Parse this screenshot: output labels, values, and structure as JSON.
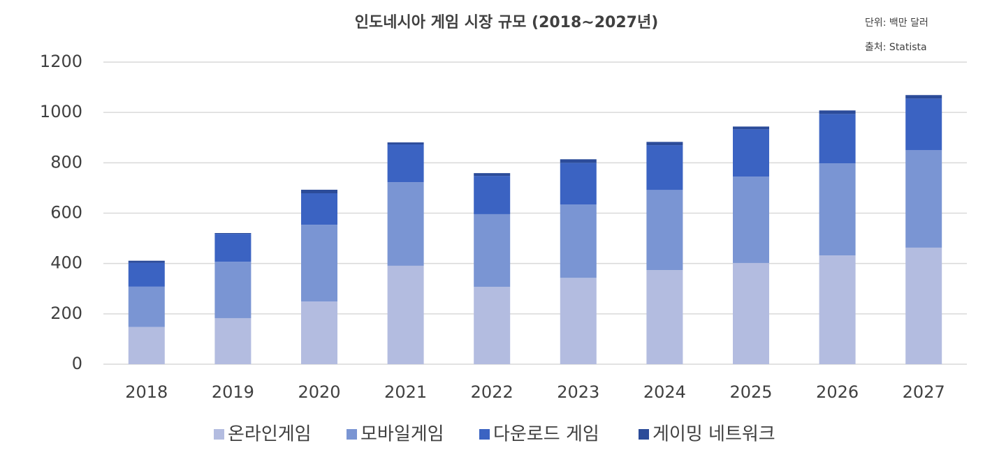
{
  "chart_data": {
    "type": "stacked_bar",
    "title": "인도네시아 게임 시장 규모 (2018~2027년)",
    "annotations": [
      "단위: 백만 달러",
      "출처: Statista"
    ],
    "categories": [
      "2018",
      "2019",
      "2020",
      "2021",
      "2022",
      "2023",
      "2024",
      "2025",
      "2026",
      "2027"
    ],
    "series": [
      {
        "name": "온라인게임",
        "color": "#b3bce0",
        "values": [
          148,
          183,
          249,
          391,
          307,
          343,
          374,
          402,
          432,
          463
        ]
      },
      {
        "name": "모바일게임",
        "color": "#7a95d3",
        "values": [
          160,
          224,
          305,
          332,
          289,
          291,
          318,
          343,
          366,
          387
        ]
      },
      {
        "name": "다운로드 게임",
        "color": "#3b63c2",
        "values": [
          95,
          111,
          125,
          150,
          152,
          166,
          178,
          188,
          196,
          205
        ]
      },
      {
        "name": "게이밍 네트워크",
        "color": "#2b4b99",
        "values": [
          8,
          3,
          14,
          8,
          11,
          14,
          13,
          11,
          14,
          14
        ]
      }
    ],
    "ylim": [
      0,
      1200
    ],
    "yticks": [
      0,
      200,
      400,
      600,
      800,
      1000,
      1200
    ],
    "grid": true
  }
}
